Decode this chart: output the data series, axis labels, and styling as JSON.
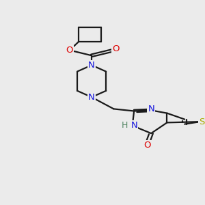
{
  "bg_color": "#ebebeb",
  "bond_color": "#1a1a1a",
  "bond_width": 1.6,
  "figsize": [
    3.0,
    3.0
  ],
  "dpi": 100,
  "xlim": [
    -0.5,
    5.5
  ],
  "ylim": [
    1.2,
    10.8
  ]
}
